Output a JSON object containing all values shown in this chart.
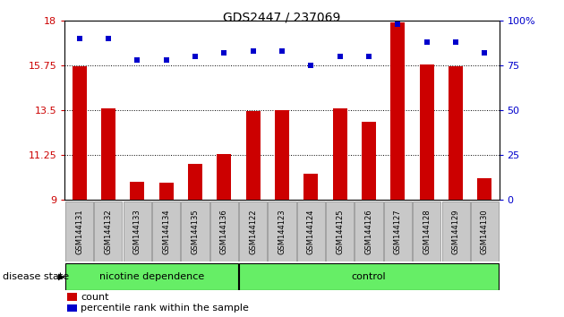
{
  "title": "GDS2447 / 237069",
  "samples": [
    "GSM144131",
    "GSM144132",
    "GSM144133",
    "GSM144134",
    "GSM144135",
    "GSM144136",
    "GSM144122",
    "GSM144123",
    "GSM144124",
    "GSM144125",
    "GSM144126",
    "GSM144127",
    "GSM144128",
    "GSM144129",
    "GSM144130"
  ],
  "bar_values": [
    15.7,
    13.6,
    9.9,
    9.85,
    10.8,
    11.3,
    13.45,
    13.5,
    10.3,
    13.6,
    12.9,
    17.9,
    15.8,
    15.7,
    10.1
  ],
  "dot_values": [
    90,
    90,
    78,
    78,
    80,
    82,
    83,
    83,
    75,
    80,
    80,
    98,
    88,
    88,
    82
  ],
  "ylim_left": [
    9,
    18
  ],
  "ylim_right": [
    0,
    100
  ],
  "yticks_left": [
    9,
    11.25,
    13.5,
    15.75,
    18
  ],
  "yticks_right": [
    0,
    25,
    50,
    75,
    100
  ],
  "bar_color": "#cc0000",
  "dot_color": "#0000cc",
  "nicotine_color": "#66ee66",
  "control_color": "#66ee66",
  "label_nicotine": "nicotine dependence",
  "label_control": "control",
  "disease_state_label": "disease state",
  "legend_count": "count",
  "legend_percentile": "percentile rank within the sample",
  "xticklabel_bg": "#c8c8c8",
  "n_nicotine": 6,
  "n_control": 9
}
